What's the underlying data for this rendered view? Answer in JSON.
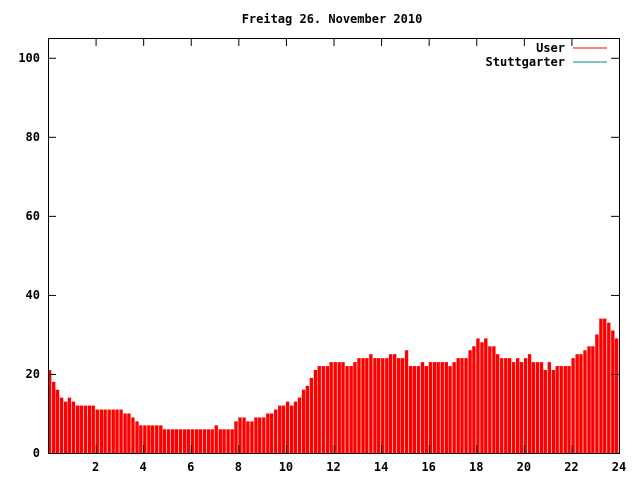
{
  "chart_data": {
    "type": "bar",
    "title": "Freitag 26. November 2010",
    "xlabel": "",
    "ylabel": "",
    "xlim": [
      0,
      24
    ],
    "ylim": [
      0,
      105
    ],
    "x_ticks": [
      2,
      4,
      6,
      8,
      10,
      12,
      14,
      16,
      18,
      20,
      22,
      24
    ],
    "x_tick_labels": [
      "2",
      "4",
      "6",
      "8",
      "10",
      "12",
      "14",
      "16",
      "18",
      "20",
      "22",
      "24"
    ],
    "y_ticks": [
      0,
      20,
      40,
      60,
      80,
      100
    ],
    "y_tick_labels": [
      "0",
      "20",
      "40",
      "60",
      "80",
      "100"
    ],
    "grid": false,
    "legend_position": "top-right",
    "series": [
      {
        "name": "User",
        "color": "#ff0000",
        "points": [
          [
            0.0,
            21
          ],
          [
            0.17,
            18
          ],
          [
            0.33,
            16
          ],
          [
            0.5,
            14
          ],
          [
            0.67,
            13
          ],
          [
            0.83,
            14
          ],
          [
            1.0,
            13
          ],
          [
            1.17,
            12
          ],
          [
            1.33,
            12
          ],
          [
            1.5,
            12
          ],
          [
            1.67,
            12
          ],
          [
            1.83,
            12
          ],
          [
            2.0,
            11
          ],
          [
            2.17,
            11
          ],
          [
            2.33,
            11
          ],
          [
            2.5,
            11
          ],
          [
            2.67,
            11
          ],
          [
            2.83,
            11
          ],
          [
            3.0,
            11
          ],
          [
            3.17,
            10
          ],
          [
            3.33,
            10
          ],
          [
            3.5,
            9
          ],
          [
            3.67,
            8
          ],
          [
            3.83,
            7
          ],
          [
            4.0,
            7
          ],
          [
            4.17,
            7
          ],
          [
            4.33,
            7
          ],
          [
            4.5,
            7
          ],
          [
            4.67,
            7
          ],
          [
            4.83,
            6
          ],
          [
            5.0,
            6
          ],
          [
            5.17,
            6
          ],
          [
            5.33,
            6
          ],
          [
            5.5,
            6
          ],
          [
            5.67,
            6
          ],
          [
            5.83,
            6
          ],
          [
            6.0,
            6
          ],
          [
            6.17,
            6
          ],
          [
            6.33,
            6
          ],
          [
            6.5,
            6
          ],
          [
            6.67,
            6
          ],
          [
            6.83,
            6
          ],
          [
            7.0,
            7
          ],
          [
            7.17,
            6
          ],
          [
            7.33,
            6
          ],
          [
            7.5,
            6
          ],
          [
            7.67,
            6
          ],
          [
            7.83,
            8
          ],
          [
            8.0,
            9
          ],
          [
            8.17,
            9
          ],
          [
            8.33,
            8
          ],
          [
            8.5,
            8
          ],
          [
            8.67,
            9
          ],
          [
            8.83,
            9
          ],
          [
            9.0,
            9
          ],
          [
            9.17,
            10
          ],
          [
            9.33,
            10
          ],
          [
            9.5,
            11
          ],
          [
            9.67,
            12
          ],
          [
            9.83,
            12
          ],
          [
            10.0,
            13
          ],
          [
            10.17,
            12
          ],
          [
            10.33,
            13
          ],
          [
            10.5,
            14
          ],
          [
            10.67,
            16
          ],
          [
            10.83,
            17
          ],
          [
            11.0,
            19
          ],
          [
            11.17,
            21
          ],
          [
            11.33,
            22
          ],
          [
            11.5,
            22
          ],
          [
            11.67,
            22
          ],
          [
            11.83,
            23
          ],
          [
            12.0,
            23
          ],
          [
            12.17,
            23
          ],
          [
            12.33,
            23
          ],
          [
            12.5,
            22
          ],
          [
            12.67,
            22
          ],
          [
            12.83,
            23
          ],
          [
            13.0,
            24
          ],
          [
            13.17,
            24
          ],
          [
            13.33,
            24
          ],
          [
            13.5,
            25
          ],
          [
            13.67,
            24
          ],
          [
            13.83,
            24
          ],
          [
            14.0,
            24
          ],
          [
            14.17,
            24
          ],
          [
            14.33,
            25
          ],
          [
            14.5,
            25
          ],
          [
            14.67,
            24
          ],
          [
            14.83,
            24
          ],
          [
            15.0,
            26
          ],
          [
            15.17,
            22
          ],
          [
            15.33,
            22
          ],
          [
            15.5,
            22
          ],
          [
            15.67,
            23
          ],
          [
            15.83,
            22
          ],
          [
            16.0,
            23
          ],
          [
            16.17,
            23
          ],
          [
            16.33,
            23
          ],
          [
            16.5,
            23
          ],
          [
            16.67,
            23
          ],
          [
            16.83,
            22
          ],
          [
            17.0,
            23
          ],
          [
            17.17,
            24
          ],
          [
            17.33,
            24
          ],
          [
            17.5,
            24
          ],
          [
            17.67,
            26
          ],
          [
            17.83,
            27
          ],
          [
            18.0,
            29
          ],
          [
            18.17,
            28
          ],
          [
            18.33,
            29
          ],
          [
            18.5,
            27
          ],
          [
            18.67,
            27
          ],
          [
            18.83,
            25
          ],
          [
            19.0,
            24
          ],
          [
            19.17,
            24
          ],
          [
            19.33,
            24
          ],
          [
            19.5,
            23
          ],
          [
            19.67,
            24
          ],
          [
            19.83,
            23
          ],
          [
            20.0,
            24
          ],
          [
            20.17,
            25
          ],
          [
            20.33,
            23
          ],
          [
            20.5,
            23
          ],
          [
            20.67,
            23
          ],
          [
            20.83,
            21
          ],
          [
            21.0,
            23
          ],
          [
            21.17,
            21
          ],
          [
            21.33,
            22
          ],
          [
            21.5,
            22
          ],
          [
            21.67,
            22
          ],
          [
            21.83,
            22
          ],
          [
            22.0,
            24
          ],
          [
            22.17,
            25
          ],
          [
            22.33,
            25
          ],
          [
            22.5,
            26
          ],
          [
            22.67,
            27
          ],
          [
            22.83,
            27
          ],
          [
            23.0,
            30
          ],
          [
            23.17,
            34
          ],
          [
            23.33,
            34
          ],
          [
            23.5,
            33
          ],
          [
            23.67,
            31
          ],
          [
            23.83,
            29
          ]
        ]
      },
      {
        "name": "Stuttgarter",
        "color": "#008b8b",
        "points": []
      }
    ]
  }
}
